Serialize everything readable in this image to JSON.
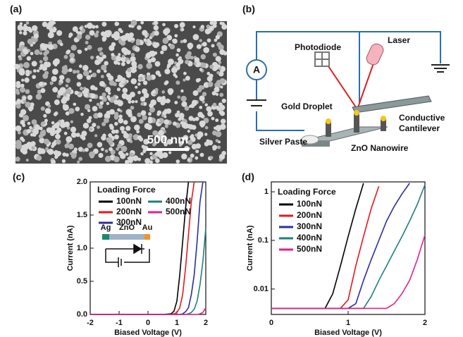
{
  "panels": {
    "a": {
      "label": "(a)",
      "scale_bar": "500 nm"
    },
    "b": {
      "label": "(b)",
      "ammeter": "A",
      "laser": "Laser",
      "photodiode": "Photodiode",
      "gold_droplet": "Gold Droplet",
      "cantilever": [
        "Conductive",
        "Cantilever"
      ],
      "silver_paste": "Silver Paste",
      "nanowire": "ZnO Nanowire"
    }
  },
  "chart_data": [
    {
      "type": "line",
      "label": "(c)",
      "x_label": "Biased Voltage (V)",
      "y_label": "Current (nA)",
      "legend_title": "Loading Force",
      "inset_labels": [
        "Ag",
        "ZnO",
        "Au"
      ],
      "x": [
        -2,
        -1,
        0,
        0.5,
        0.8,
        0.9,
        1.0,
        1.1,
        1.2,
        1.3,
        1.4,
        1.5,
        1.6,
        1.7,
        1.8,
        1.9,
        2.0
      ],
      "xlim": [
        -2,
        2
      ],
      "xticks": [
        -2,
        -1,
        0,
        1,
        2
      ],
      "ylim": [
        0,
        2
      ],
      "yticks": [
        {
          "value": 0,
          "label": "0.0"
        },
        {
          "value": 0.5,
          "label": "0.5"
        },
        {
          "value": 1,
          "label": "1.0"
        },
        {
          "value": 1.5,
          "label": "1.5"
        },
        {
          "value": 2,
          "label": "2.0"
        }
      ],
      "series": [
        {
          "name": "100nN",
          "color": "#000000",
          "values": [
            0,
            0,
            0,
            0,
            0.01,
            0.05,
            0.2,
            0.6,
            1.1,
            1.6,
            2.0,
            null,
            null,
            null,
            null,
            null,
            null
          ]
        },
        {
          "name": "200nN",
          "color": "#e8171d",
          "values": [
            0,
            0,
            0,
            0,
            0,
            0.01,
            0.03,
            0.1,
            0.3,
            0.7,
            1.2,
            1.7,
            2.0,
            null,
            null,
            null,
            null
          ]
        },
        {
          "name": "300nN",
          "color": "#2b2e9c",
          "values": [
            0,
            0,
            0,
            0,
            0,
            0,
            0,
            0,
            0.01,
            0.04,
            0.1,
            0.3,
            0.6,
            1.1,
            1.7,
            2.0,
            null
          ]
        },
        {
          "name": "400nN",
          "color": "#1f7f7f",
          "values": [
            0,
            0,
            0,
            0,
            0,
            0,
            0,
            0,
            0,
            0,
            0.01,
            0.03,
            0.08,
            0.2,
            0.45,
            0.8,
            1.3
          ]
        },
        {
          "name": "500nN",
          "color": "#e0208f",
          "values": [
            0,
            0,
            0,
            0,
            0,
            0,
            0,
            0,
            0,
            0,
            0,
            0,
            0,
            0,
            0.01,
            0.03,
            0.1
          ]
        }
      ]
    },
    {
      "type": "line",
      "label": "(d)",
      "x_label": "Biased Voltage (V)",
      "y_label": "Current (nA)",
      "legend_title": "Loading Force",
      "log": true,
      "x": [
        0,
        0.5,
        0.7,
        0.8,
        0.9,
        1.0,
        1.1,
        1.2,
        1.3,
        1.4,
        1.5,
        1.6,
        1.7,
        1.8,
        1.9,
        2.0
      ],
      "xlim": [
        0,
        2
      ],
      "xticks": [
        0,
        1,
        2
      ],
      "ylim": [
        0.003,
        1.6
      ],
      "yticks": [
        0.01,
        0.1,
        1
      ],
      "series": [
        {
          "name": "100nN",
          "color": "#000000",
          "values": [
            0.004,
            0.004,
            0.004,
            0.008,
            0.03,
            0.12,
            0.45,
            1.5,
            null,
            null,
            null,
            null,
            null,
            null,
            null,
            null
          ]
        },
        {
          "name": "200nN",
          "color": "#e8171d",
          "values": [
            0.004,
            0.004,
            0.004,
            0.004,
            0.004,
            0.006,
            0.03,
            0.12,
            0.45,
            1.3,
            null,
            null,
            null,
            null,
            null,
            null
          ]
        },
        {
          "name": "300nN",
          "color": "#2b2e9c",
          "values": [
            0.004,
            0.004,
            0.004,
            0.004,
            0.004,
            0.004,
            0.005,
            0.015,
            0.04,
            0.1,
            0.25,
            0.5,
            0.9,
            1.5,
            null,
            null
          ]
        },
        {
          "name": "400nN",
          "color": "#1f7f7f",
          "values": [
            0.004,
            0.004,
            0.004,
            0.004,
            0.004,
            0.004,
            0.004,
            0.004,
            0.007,
            0.015,
            0.03,
            0.06,
            0.12,
            0.25,
            0.55,
            1.4
          ]
        },
        {
          "name": "500nN",
          "color": "#e0208f",
          "values": [
            0.004,
            0.004,
            0.004,
            0.004,
            0.004,
            0.004,
            0.004,
            0.004,
            0.004,
            0.004,
            0.004,
            0.005,
            0.008,
            0.015,
            0.04,
            0.13
          ]
        }
      ]
    }
  ]
}
